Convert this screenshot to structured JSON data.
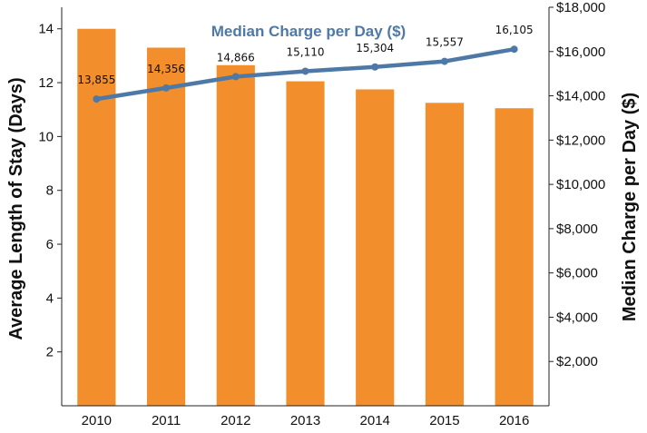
{
  "chart_data": {
    "type": "bar",
    "categories": [
      "2010",
      "2011",
      "2012",
      "2013",
      "2014",
      "2015",
      "2016"
    ],
    "series": [
      {
        "name": "",
        "type": "bar",
        "axis": "left",
        "values": [
          14.0,
          13.3,
          12.65,
          12.05,
          11.75,
          11.25,
          11.05
        ],
        "color": "#F28E2B"
      },
      {
        "name": "Median Charge per Day ($)",
        "type": "line",
        "axis": "right",
        "values": [
          13855,
          14356,
          14866,
          15110,
          15304,
          15557,
          16105
        ],
        "labels": [
          "13,855",
          "14,356",
          "14,866",
          "15,110",
          "15,304",
          "15,557",
          "16,105"
        ],
        "color": "#4E79A7"
      }
    ],
    "y_left": {
      "label": "Average Length of Stay (Days)",
      "ylim": [
        0,
        14.8
      ],
      "ticks": [
        2,
        4,
        6,
        8,
        10,
        12,
        14
      ],
      "tick_labels": [
        "2",
        "4",
        "6",
        "8",
        "10",
        "12",
        "14"
      ]
    },
    "y_right": {
      "label": "Median Charge per Day ($)",
      "ylim": [
        0,
        18000
      ],
      "ticks": [
        2000,
        4000,
        6000,
        8000,
        10000,
        12000,
        14000,
        16000,
        18000
      ],
      "tick_labels": [
        "$2,000",
        "$4,000",
        "$6,000",
        "$8,000",
        "$10,000",
        "$12,000",
        "$14,000",
        "$16,000",
        "$18,000"
      ]
    },
    "grid": false
  }
}
